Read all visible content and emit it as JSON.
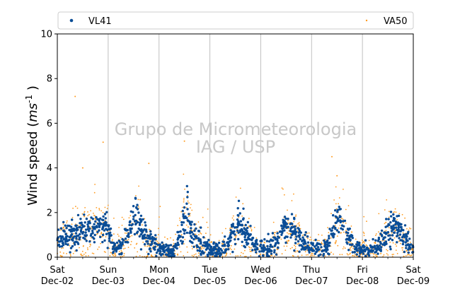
{
  "chart_data": {
    "type": "scatter",
    "ylabel": "Wind speed",
    "ylabel_unit": "ms",
    "ylabel_unit_exp": "-1",
    "ylim": [
      0,
      10
    ],
    "yticks": [
      "0",
      "2",
      "4",
      "6",
      "8",
      "10"
    ],
    "xlim": [
      "2023-12-02",
      "2023-12-09"
    ],
    "xticks": [
      {
        "day": "Sat",
        "date": "Dec-02"
      },
      {
        "day": "Sun",
        "date": "Dec-03"
      },
      {
        "day": "Mon",
        "date": "Dec-04"
      },
      {
        "day": "Tue",
        "date": "Dec-05"
      },
      {
        "day": "Wed",
        "date": "Dec-06"
      },
      {
        "day": "Thu",
        "date": "Dec-07"
      },
      {
        "day": "Fri",
        "date": "Dec-08"
      },
      {
        "day": "Sat",
        "date": "Dec-09"
      }
    ],
    "grid": "vertical at day boundaries",
    "legend_placement": "top, above plot",
    "watermark": [
      "Grupo de Micrometeorologia",
      "IAG / USP"
    ],
    "series": [
      {
        "name": "VL41",
        "color": "#0a4d96",
        "marker": "dot",
        "daily_profile_days_from_start_and_mean_speed": [
          [
            0.0,
            0.9
          ],
          [
            0.25,
            0.9
          ],
          [
            0.5,
            1.2
          ],
          [
            0.75,
            1.3
          ],
          [
            0.95,
            1.5
          ],
          [
            1.1,
            0.5
          ],
          [
            1.25,
            0.4
          ],
          [
            1.45,
            1.3
          ],
          [
            1.55,
            1.9
          ],
          [
            1.7,
            1.1
          ],
          [
            1.85,
            0.6
          ],
          [
            2.1,
            0.25
          ],
          [
            2.3,
            0.3
          ],
          [
            2.45,
            1.3
          ],
          [
            2.55,
            1.9
          ],
          [
            2.7,
            0.9
          ],
          [
            2.85,
            0.5
          ],
          [
            3.1,
            0.3
          ],
          [
            3.3,
            0.4
          ],
          [
            3.45,
            1.0
          ],
          [
            3.55,
            1.6
          ],
          [
            3.7,
            1.1
          ],
          [
            3.85,
            0.6
          ],
          [
            4.1,
            0.3
          ],
          [
            4.3,
            0.6
          ],
          [
            4.45,
            1.4
          ],
          [
            4.55,
            1.4
          ],
          [
            4.7,
            1.1
          ],
          [
            4.85,
            0.6
          ],
          [
            5.1,
            0.4
          ],
          [
            5.3,
            0.5
          ],
          [
            5.45,
            1.4
          ],
          [
            5.55,
            1.8
          ],
          [
            5.7,
            0.9
          ],
          [
            5.85,
            0.4
          ],
          [
            6.1,
            0.25
          ],
          [
            6.3,
            0.5
          ],
          [
            6.45,
            0.9
          ],
          [
            6.55,
            1.3
          ],
          [
            6.7,
            1.3
          ],
          [
            6.85,
            0.7
          ],
          [
            7.0,
            0.4
          ]
        ]
      },
      {
        "name": "VA50",
        "color": "#ff9a1f",
        "marker": "dot-small",
        "outliers_days_from_start_and_speed": [
          [
            0.35,
            7.2
          ],
          [
            0.5,
            4.0
          ],
          [
            0.9,
            5.15
          ],
          [
            1.8,
            4.2
          ],
          [
            2.5,
            5.2
          ],
          [
            5.4,
            4.5
          ],
          [
            5.5,
            3.65
          ]
        ]
      }
    ]
  }
}
